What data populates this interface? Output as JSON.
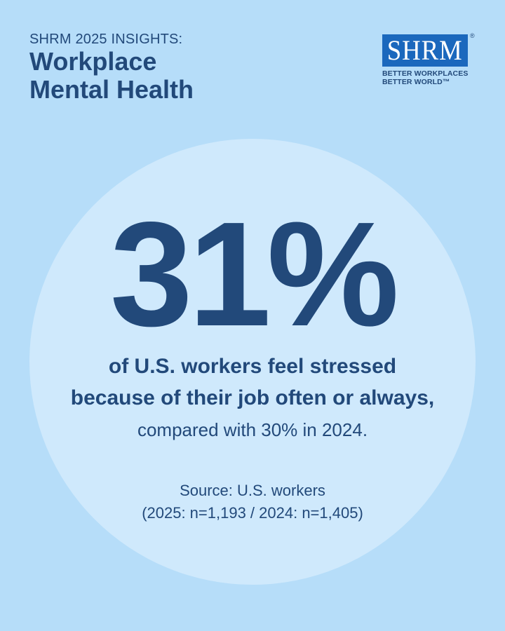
{
  "header": {
    "eyebrow": "SHRM 2025 INSIGHTS:",
    "title_line1": "Workplace",
    "title_line2": "Mental Health"
  },
  "logo": {
    "text": "SHRM",
    "registered": "®",
    "tagline_line1": "BETTER WORKPLACES",
    "tagline_line2": "BETTER WORLD™"
  },
  "stat": {
    "value": "31%",
    "statement_line1": "of U.S. workers feel stressed",
    "statement_line2": "because of their job often or always,",
    "comparison": "compared with 30% in 2024."
  },
  "source": {
    "line1": "Source: U.S. workers",
    "line2": "(2025: n=1,193 / 2024: n=1,405)"
  },
  "colors": {
    "background": "#b6ddf9",
    "circle": "#cfe9fc",
    "text": "#22497a",
    "logo_box": "#1b68bd"
  }
}
